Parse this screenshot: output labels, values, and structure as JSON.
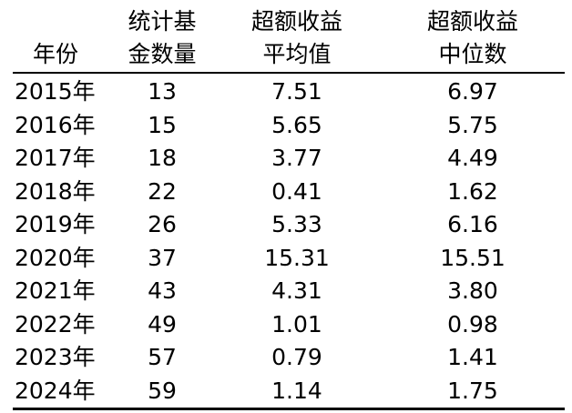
{
  "table": {
    "headers": {
      "year": [
        "年份"
      ],
      "count": [
        "统计基",
        "金数量"
      ],
      "mean": [
        "超额收益",
        "平均值"
      ],
      "median": [
        "超额收益",
        "中位数"
      ]
    },
    "rows": [
      {
        "year": "2015年",
        "count": "13",
        "mean": "7.51",
        "median": "6.97"
      },
      {
        "year": "2016年",
        "count": "15",
        "mean": "5.65",
        "median": "5.75"
      },
      {
        "year": "2017年",
        "count": "18",
        "mean": "3.77",
        "median": "4.49"
      },
      {
        "year": "2018年",
        "count": "22",
        "mean": "0.41",
        "median": "1.62"
      },
      {
        "year": "2019年",
        "count": "26",
        "mean": "5.33",
        "median": "6.16"
      },
      {
        "year": "2020年",
        "count": "37",
        "mean": "15.31",
        "median": "15.51"
      },
      {
        "year": "2021年",
        "count": "43",
        "mean": "4.31",
        "median": "3.80"
      },
      {
        "year": "2022年",
        "count": "49",
        "mean": "1.01",
        "median": "0.98"
      },
      {
        "year": "2023年",
        "count": "57",
        "mean": "0.79",
        "median": "1.41"
      },
      {
        "year": "2024年",
        "count": "59",
        "mean": "1.14",
        "median": "1.75"
      }
    ]
  }
}
